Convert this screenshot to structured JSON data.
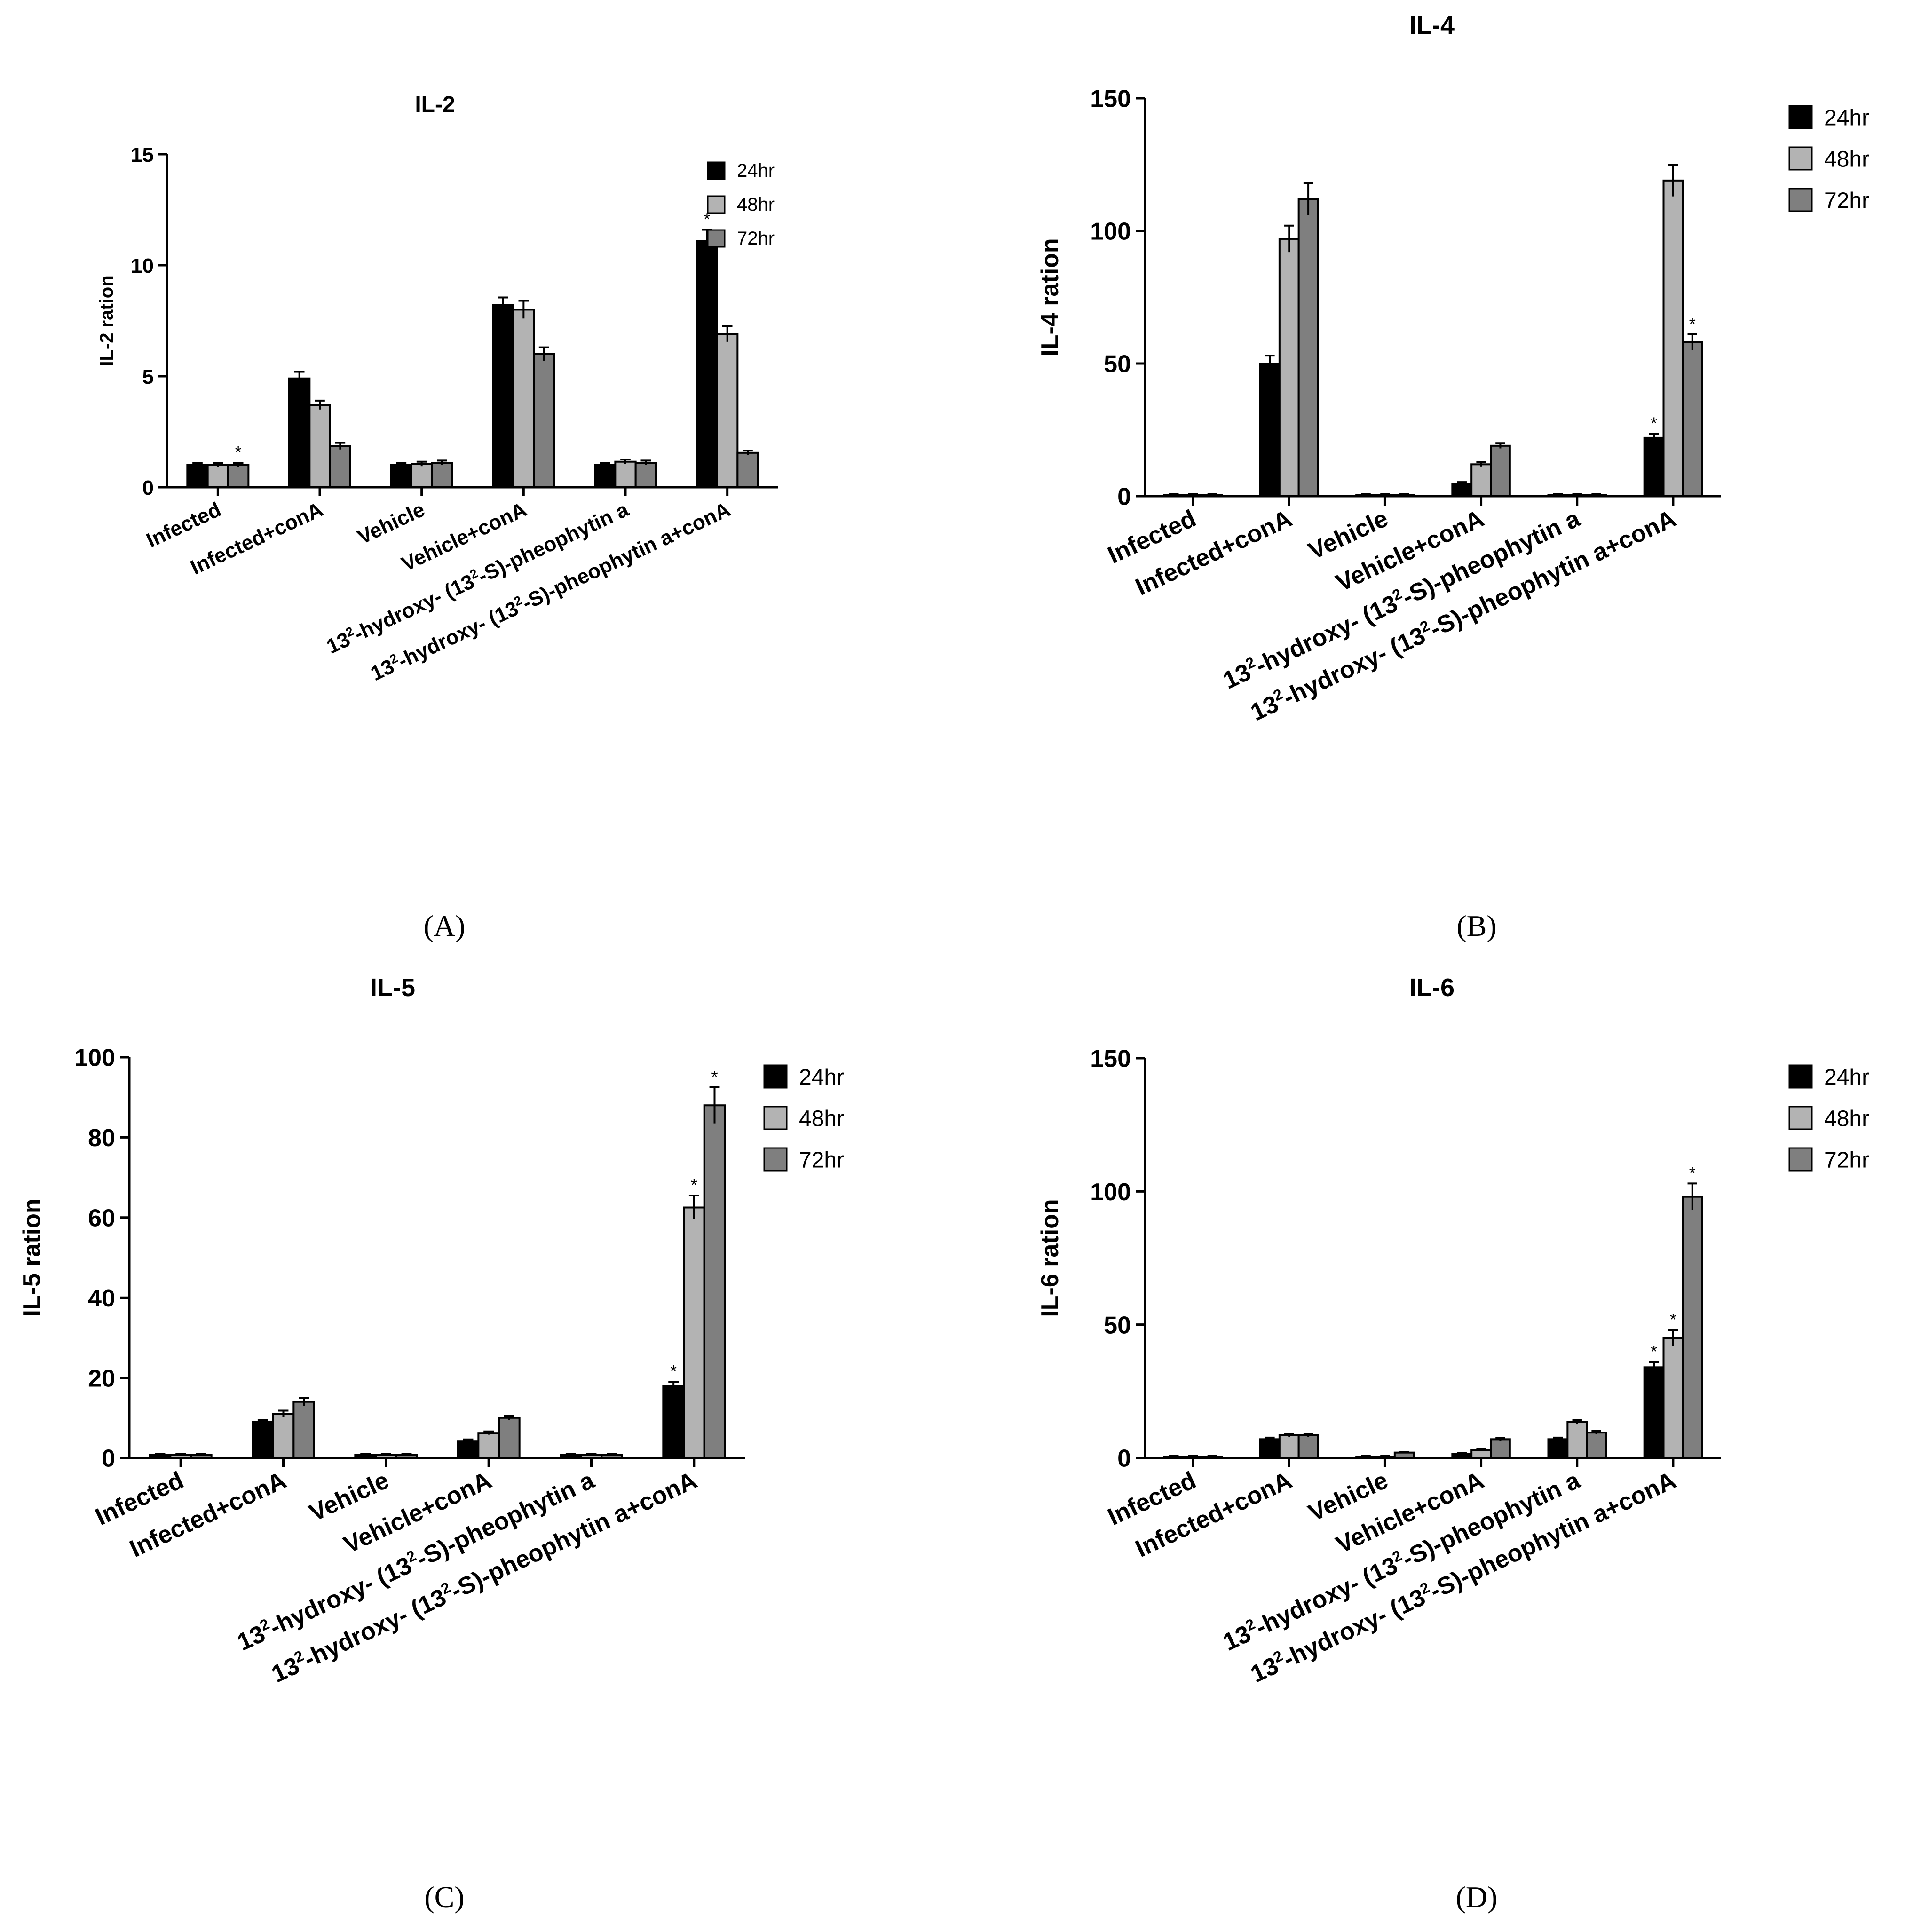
{
  "panel_labels": [
    "(A)",
    "(B)",
    "(C)",
    "(D)"
  ],
  "chart_data": [
    {
      "type": "bar",
      "title": "IL-2",
      "ylabel": "IL-2 ration",
      "ylim": [
        0,
        15
      ],
      "yticks": [
        0,
        5,
        10,
        15
      ],
      "categories": [
        "Infected",
        "Infected+conA",
        "Vehicle",
        "Vehicle+conA",
        "13²-hydroxy- (13²-S)-pheophytin a",
        "13²-hydroxy- (13²-S)-pheophytin a+conA"
      ],
      "series": [
        {
          "name": "24hr",
          "color": "#000000",
          "values": [
            1.0,
            4.9,
            1.0,
            8.2,
            1.0,
            11.1
          ],
          "errors": [
            0.1,
            0.3,
            0.1,
            0.35,
            0.1,
            0.5
          ]
        },
        {
          "name": "48hr",
          "color": "#b3b3b3",
          "values": [
            1.0,
            3.7,
            1.05,
            8.0,
            1.15,
            6.9
          ],
          "errors": [
            0.1,
            0.2,
            0.1,
            0.4,
            0.1,
            0.35
          ]
        },
        {
          "name": "72hr",
          "color": "#7f7f7f",
          "values": [
            1.0,
            1.85,
            1.1,
            6.0,
            1.1,
            1.55
          ],
          "errors": [
            0.1,
            0.15,
            0.1,
            0.3,
            0.1,
            0.1
          ]
        }
      ],
      "significance": [
        [
          false,
          false,
          true
        ],
        [
          false,
          false,
          false
        ],
        [
          false,
          false,
          false
        ],
        [
          false,
          false,
          false
        ],
        [
          false,
          false,
          false
        ],
        [
          true,
          false,
          false
        ]
      ],
      "legend_position": "top-right"
    },
    {
      "type": "bar",
      "title": "IL-4",
      "ylabel": "IL-4 ration",
      "ylim": [
        0,
        150
      ],
      "yticks": [
        0,
        50,
        100,
        150
      ],
      "categories": [
        "Infected",
        "Infected+conA",
        "Vehicle",
        "Vehicle+conA",
        "13²-hydroxy- (13²-S)-pheophytin a",
        "13²-hydroxy- (13²-S)-pheophytin a+conA"
      ],
      "series": [
        {
          "name": "24hr",
          "color": "#000000",
          "values": [
            0.5,
            50,
            0.5,
            4.5,
            0.5,
            22
          ],
          "errors": [
            0.3,
            3,
            0.3,
            0.8,
            0.3,
            1.5
          ]
        },
        {
          "name": "48hr",
          "color": "#b3b3b3",
          "values": [
            0.5,
            97,
            0.5,
            12,
            0.5,
            119
          ],
          "errors": [
            0.3,
            5,
            0.3,
            0.8,
            0.3,
            6
          ]
        },
        {
          "name": "72hr",
          "color": "#7f7f7f",
          "values": [
            0.5,
            112,
            0.5,
            19,
            0.5,
            58
          ],
          "errors": [
            0.3,
            6,
            0.3,
            1,
            0.3,
            3
          ]
        }
      ],
      "significance": [
        [
          false,
          false,
          false
        ],
        [
          false,
          false,
          false
        ],
        [
          false,
          false,
          false
        ],
        [
          false,
          false,
          false
        ],
        [
          false,
          false,
          false
        ],
        [
          true,
          false,
          true
        ]
      ],
      "legend_position": "top-right"
    },
    {
      "type": "bar",
      "title": "IL-5",
      "ylabel": "IL-5 ration",
      "ylim": [
        0,
        100
      ],
      "yticks": [
        0,
        20,
        40,
        60,
        80,
        100
      ],
      "categories": [
        "Infected",
        "Infected+conA",
        "Vehicle",
        "Vehicle+conA",
        "13²-hydroxy- (13²-S)-pheophytin a",
        "13²-hydroxy- (13²-S)-pheophytin a+conA"
      ],
      "series": [
        {
          "name": "24hr",
          "color": "#000000",
          "values": [
            0.8,
            9,
            0.8,
            4.2,
            0.8,
            18
          ],
          "errors": [
            0.2,
            0.5,
            0.2,
            0.4,
            0.2,
            1
          ]
        },
        {
          "name": "48hr",
          "color": "#b3b3b3",
          "values": [
            0.8,
            11,
            0.8,
            6.2,
            0.8,
            62.5
          ],
          "errors": [
            0.2,
            0.8,
            0.2,
            0.4,
            0.2,
            3
          ]
        },
        {
          "name": "72hr",
          "color": "#7f7f7f",
          "values": [
            0.8,
            14,
            0.8,
            10,
            0.8,
            88
          ],
          "errors": [
            0.2,
            1,
            0.2,
            0.5,
            0.2,
            4.5
          ]
        }
      ],
      "significance": [
        [
          false,
          false,
          false
        ],
        [
          false,
          false,
          false
        ],
        [
          false,
          false,
          false
        ],
        [
          false,
          false,
          false
        ],
        [
          false,
          false,
          false
        ],
        [
          true,
          true,
          true
        ]
      ],
      "legend_position": "top-right"
    },
    {
      "type": "bar",
      "title": "IL-6",
      "ylabel": "IL-6 ration",
      "ylim": [
        0,
        150
      ],
      "yticks": [
        0,
        50,
        100,
        150
      ],
      "categories": [
        "Infected",
        "Infected+conA",
        "Vehicle",
        "Vehicle+conA",
        "13²-hydroxy- (13²-S)-pheophytin a",
        "13²-hydroxy- (13²-S)-pheophytin a+conA"
      ],
      "series": [
        {
          "name": "24hr",
          "color": "#000000",
          "values": [
            0.5,
            7,
            0.5,
            1.5,
            7,
            34
          ],
          "errors": [
            0.3,
            0.6,
            0.3,
            0.3,
            0.6,
            2
          ]
        },
        {
          "name": "48hr",
          "color": "#b3b3b3",
          "values": [
            0.5,
            8.5,
            0.5,
            3,
            13.5,
            45
          ],
          "errors": [
            0.3,
            0.6,
            0.3,
            0.4,
            0.8,
            3
          ]
        },
        {
          "name": "72hr",
          "color": "#7f7f7f",
          "values": [
            0.5,
            8.5,
            2,
            7,
            9.5,
            98
          ],
          "errors": [
            0.3,
            0.6,
            0.3,
            0.5,
            0.6,
            5
          ]
        }
      ],
      "significance": [
        [
          false,
          false,
          false
        ],
        [
          false,
          false,
          false
        ],
        [
          false,
          false,
          false
        ],
        [
          false,
          false,
          false
        ],
        [
          false,
          false,
          false
        ],
        [
          true,
          true,
          true
        ]
      ],
      "legend_position": "top-right"
    }
  ]
}
